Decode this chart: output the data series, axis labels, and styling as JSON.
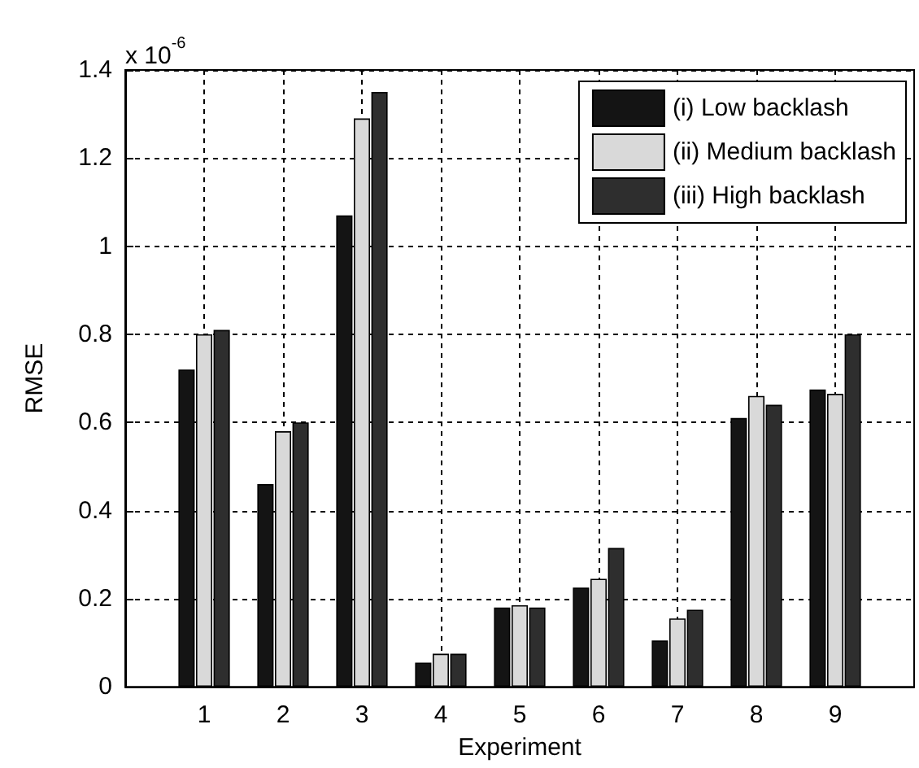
{
  "chart_data": {
    "type": "bar",
    "xlabel": "Experiment",
    "ylabel": "RMSE",
    "annotations": [
      "x 10$^{-6}$"
    ],
    "x": [
      1,
      2,
      3,
      4,
      5,
      6,
      7,
      8,
      9
    ],
    "xlim": [
      0,
      10
    ],
    "xticks": [
      1,
      2,
      3,
      4,
      5,
      6,
      7,
      8,
      9
    ],
    "ylim": [
      0,
      1.4
    ],
    "yticks": [
      0,
      0.2,
      0.4,
      0.6,
      0.8,
      1,
      1.2,
      1.4
    ],
    "series": [
      {
        "name": "(i) Low backlash",
        "color": "#141414",
        "values": [
          0.72,
          0.46,
          1.07,
          0.055,
          0.18,
          0.225,
          0.105,
          0.61,
          0.675
        ]
      },
      {
        "name": "(ii) Medium backlash",
        "color": "#d9d9d9",
        "values": [
          0.8,
          0.58,
          1.29,
          0.075,
          0.185,
          0.245,
          0.155,
          0.66,
          0.665
        ]
      },
      {
        "name": "(iii) High backlash",
        "color": "#2e2e2e",
        "values": [
          0.81,
          0.6,
          1.35,
          0.075,
          0.18,
          0.315,
          0.175,
          0.64,
          0.8
        ]
      }
    ],
    "grid": true,
    "legend": "top right"
  }
}
